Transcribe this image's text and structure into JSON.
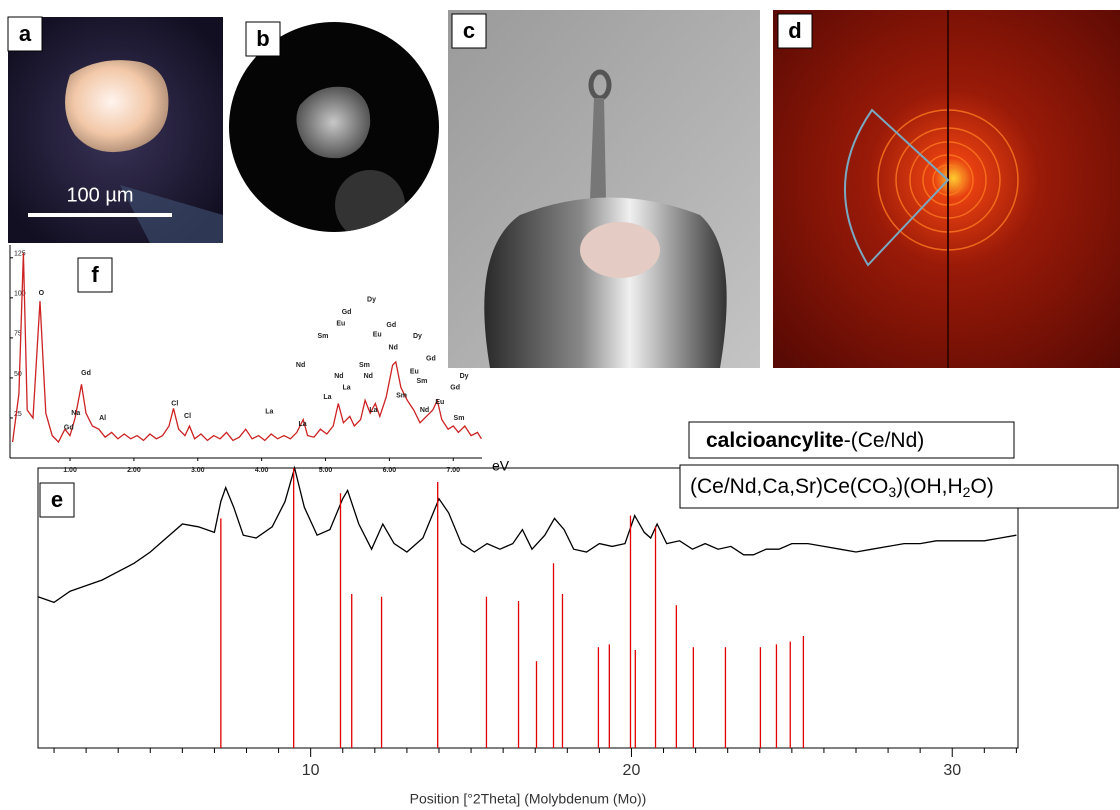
{
  "panels": [
    {
      "label": "a",
      "scale_bar": "100 µm"
    },
    {
      "label": "b"
    },
    {
      "label": "c"
    },
    {
      "label": "d"
    },
    {
      "label": "e"
    },
    {
      "label": "f"
    }
  ],
  "chart_data": [
    {
      "type": "line",
      "color": "#cc2222",
      "x_label": "eV",
      "xlim": [
        0.06,
        7.45
      ],
      "ylim": [
        0,
        133
      ],
      "xticks": [
        {
          "value": 1,
          "label": "1.00"
        },
        {
          "value": 2,
          "label": "2.00"
        },
        {
          "value": 3,
          "label": "3.00"
        },
        {
          "value": 4,
          "label": "4.00"
        },
        {
          "value": 5,
          "label": "5.00"
        },
        {
          "value": 6,
          "label": "6.00"
        },
        {
          "value": 7,
          "label": "7.00"
        }
      ],
      "yticks": [
        25,
        50,
        75,
        100,
        125
      ],
      "x": [
        0.1,
        0.2,
        0.27,
        0.33,
        0.42,
        0.53,
        0.62,
        0.72,
        0.82,
        0.92,
        1.0,
        1.08,
        1.18,
        1.25,
        1.35,
        1.45,
        1.55,
        1.65,
        1.75,
        1.85,
        1.95,
        2.05,
        2.15,
        2.25,
        2.35,
        2.45,
        2.55,
        2.62,
        2.7,
        2.8,
        2.87,
        2.95,
        3.05,
        3.15,
        3.25,
        3.35,
        3.45,
        3.55,
        3.65,
        3.75,
        3.85,
        3.95,
        4.05,
        4.15,
        4.25,
        4.35,
        4.45,
        4.55,
        4.65,
        4.72,
        4.82,
        4.92,
        5.02,
        5.12,
        5.2,
        5.28,
        5.38,
        5.45,
        5.55,
        5.62,
        5.7,
        5.78,
        5.85,
        5.95,
        6.05,
        6.1,
        6.18,
        6.28,
        6.38,
        6.48,
        6.58,
        6.68,
        6.75,
        6.82,
        6.92,
        7.0,
        7.08,
        7.18,
        7.28,
        7.38,
        7.44
      ],
      "values": [
        10,
        40,
        128,
        30,
        25,
        98,
        28,
        14,
        10,
        18,
        14,
        25,
        46,
        28,
        20,
        18,
        13,
        16,
        12,
        15,
        12,
        14,
        11,
        15,
        12,
        14,
        20,
        31,
        18,
        14,
        20,
        12,
        15,
        11,
        14,
        12,
        16,
        11,
        13,
        18,
        12,
        14,
        11,
        15,
        12,
        14,
        12,
        16,
        24,
        14,
        13,
        18,
        15,
        20,
        34,
        22,
        26,
        20,
        24,
        36,
        28,
        34,
        26,
        38,
        58,
        60,
        44,
        36,
        30,
        22,
        26,
        30,
        36,
        24,
        18,
        20,
        16,
        20,
        14,
        16,
        12
      ],
      "annotations": [
        {
          "text": "O",
          "x": 0.55,
          "y": 103
        },
        {
          "text": "Gd",
          "x": 1.25,
          "y": 53
        },
        {
          "text": "Na",
          "x": 1.09,
          "y": 28
        },
        {
          "text": "Al",
          "x": 1.51,
          "y": 25
        },
        {
          "text": "Gd",
          "x": 0.98,
          "y": 19
        },
        {
          "text": "Cl",
          "x": 2.64,
          "y": 34
        },
        {
          "text": "Cl",
          "x": 2.84,
          "y": 26
        },
        {
          "text": "La",
          "x": 4.12,
          "y": 29
        },
        {
          "text": "La",
          "x": 4.64,
          "y": 21
        },
        {
          "text": "Nd",
          "x": 4.61,
          "y": 58
        },
        {
          "text": "La",
          "x": 5.03,
          "y": 38
        },
        {
          "text": "Nd",
          "x": 5.21,
          "y": 51
        },
        {
          "text": "La",
          "x": 5.33,
          "y": 44
        },
        {
          "text": "Sm",
          "x": 4.96,
          "y": 76
        },
        {
          "text": "Eu",
          "x": 5.24,
          "y": 84
        },
        {
          "text": "Gd",
          "x": 5.33,
          "y": 91
        },
        {
          "text": "Dy",
          "x": 5.72,
          "y": 99
        },
        {
          "text": "Sm",
          "x": 5.61,
          "y": 58
        },
        {
          "text": "Nd",
          "x": 5.67,
          "y": 51
        },
        {
          "text": "Eu",
          "x": 5.81,
          "y": 77
        },
        {
          "text": "Gd",
          "x": 6.03,
          "y": 83
        },
        {
          "text": "Nd",
          "x": 6.06,
          "y": 69
        },
        {
          "text": "Sm",
          "x": 6.19,
          "y": 39
        },
        {
          "text": "La",
          "x": 5.75,
          "y": 30
        },
        {
          "text": "Dy",
          "x": 6.44,
          "y": 76
        },
        {
          "text": "Eu",
          "x": 6.39,
          "y": 54
        },
        {
          "text": "Gd",
          "x": 6.65,
          "y": 62
        },
        {
          "text": "Sm",
          "x": 6.51,
          "y": 48
        },
        {
          "text": "Nd",
          "x": 6.55,
          "y": 30
        },
        {
          "text": "Eu",
          "x": 6.79,
          "y": 35
        },
        {
          "text": "Dy",
          "x": 7.17,
          "y": 51
        },
        {
          "text": "Gd",
          "x": 7.03,
          "y": 44
        },
        {
          "text": "Sm",
          "x": 7.09,
          "y": 25
        }
      ]
    },
    {
      "type": "line",
      "x_label": "Position [°2Theta]  (Molybdenum  (Mo))",
      "xlim": [
        1.5,
        32.05
      ],
      "ylim": [
        0,
        100
      ],
      "xticks": [
        10,
        20,
        30
      ],
      "xminorticks": [
        2,
        3,
        4,
        5,
        6,
        7,
        8,
        9,
        11,
        12,
        13,
        14,
        15,
        16,
        17,
        18,
        19,
        21,
        22,
        23,
        24,
        25,
        26,
        27,
        28,
        29,
        31,
        32
      ],
      "reference": {
        "name_bold": "calcioancylite",
        "name_rest": "-(Ce/Nd)",
        "formula": [
          "(Ce/Nd,Ca,Sr)Ce(CO",
          "3",
          ")(OH,H",
          "2",
          "O)"
        ]
      },
      "series": [
        {
          "type": "line",
          "color": "#000000",
          "x": [
            1.5,
            2,
            2.5,
            3,
            3.5,
            4,
            4.5,
            5,
            5.5,
            6,
            6.5,
            7,
            7.2,
            7.35,
            7.6,
            7.9,
            8.3,
            8.8,
            9.2,
            9.5,
            9.8,
            10.2,
            10.6,
            11.0,
            11.15,
            11.5,
            11.9,
            12.25,
            12.6,
            13.0,
            13.5,
            14.0,
            14.3,
            14.7,
            15.1,
            15.5,
            15.9,
            16.3,
            16.6,
            16.9,
            17.3,
            17.6,
            17.9,
            18.2,
            18.6,
            19.0,
            19.4,
            19.8,
            20.1,
            20.4,
            20.6,
            20.8,
            21.1,
            21.5,
            21.9,
            22.3,
            22.7,
            23.1,
            23.5,
            23.8,
            24.2,
            24.6,
            25.0,
            25.5,
            26,
            26.5,
            27,
            27.5,
            28,
            28.5,
            29,
            29.5,
            30,
            30.5,
            31,
            31.5,
            32
          ],
          "values": [
            54,
            52,
            56,
            58,
            60,
            63,
            66,
            70,
            75,
            80,
            79,
            77,
            88,
            93,
            86,
            76,
            75,
            79,
            88,
            100,
            86,
            76,
            78,
            89,
            92,
            80,
            71,
            80,
            73,
            70,
            75,
            89,
            84,
            73,
            70,
            73,
            71,
            73,
            78,
            71,
            76,
            82,
            78,
            71,
            70,
            73,
            72,
            73,
            83,
            77,
            75,
            80,
            73,
            74,
            71,
            73,
            71,
            72,
            69,
            69,
            71,
            71,
            73,
            73,
            72,
            71,
            70,
            71,
            72,
            73,
            73,
            74,
            74,
            74,
            74,
            75,
            76
          ]
        },
        {
          "type": "stick",
          "color": "#e00000",
          "x": [
            7.2,
            9.47,
            10.93,
            11.28,
            12.21,
            13.96,
            15.48,
            16.48,
            17.04,
            17.57,
            17.85,
            18.97,
            19.31,
            19.97,
            20.12,
            20.75,
            21.4,
            21.93,
            22.93,
            24.02,
            24.52,
            24.95,
            25.36
          ],
          "values": [
            82,
            100,
            91,
            55,
            54,
            95,
            54,
            52.5,
            31,
            66,
            55,
            36,
            37,
            83,
            35,
            79,
            51,
            36,
            36,
            36,
            37,
            38,
            40
          ]
        }
      ]
    }
  ]
}
